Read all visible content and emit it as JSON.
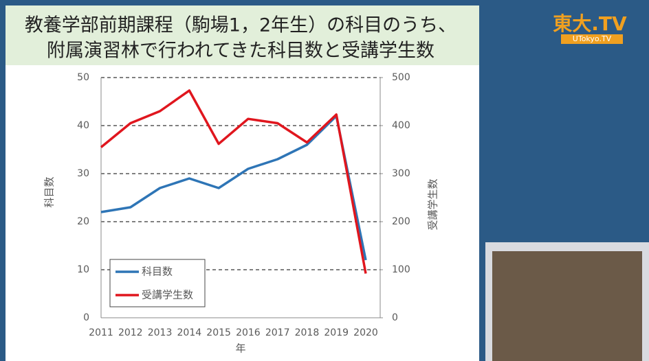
{
  "chart_data": {
    "type": "line",
    "title": [
      "教養学部前期課程（駒場1，2年生）の科目のうち、",
      "附属演習林で行われてきた科目数と受講学生数"
    ],
    "x_label": "年",
    "y_label": "科目数",
    "y2_label": "受講学生数",
    "categories": [
      "2011",
      "2012",
      "2013",
      "2014",
      "2015",
      "2016",
      "2017",
      "2018",
      "2019",
      "2020"
    ],
    "series": [
      {
        "name": "科目数",
        "color": "#2e75b6",
        "values": [
          22,
          23,
          27,
          29,
          27,
          31,
          33,
          36,
          42,
          12
        ]
      },
      {
        "name": "受講学生数",
        "color": "#e0161e",
        "axis": "y2",
        "values": [
          355,
          405,
          430,
          473,
          362,
          414,
          405,
          365,
          423,
          92
        ]
      }
    ],
    "ylim": [
      0,
      50
    ],
    "yticks": [
      0,
      10,
      20,
      30,
      40,
      50
    ],
    "y2lim": [
      0,
      500
    ],
    "y2ticks": [
      0,
      100,
      200,
      300,
      400,
      500
    ],
    "grid": true,
    "legend": "lower left"
  },
  "logo": {
    "main": "東大.TV",
    "sub": "UTokyo.TV"
  }
}
